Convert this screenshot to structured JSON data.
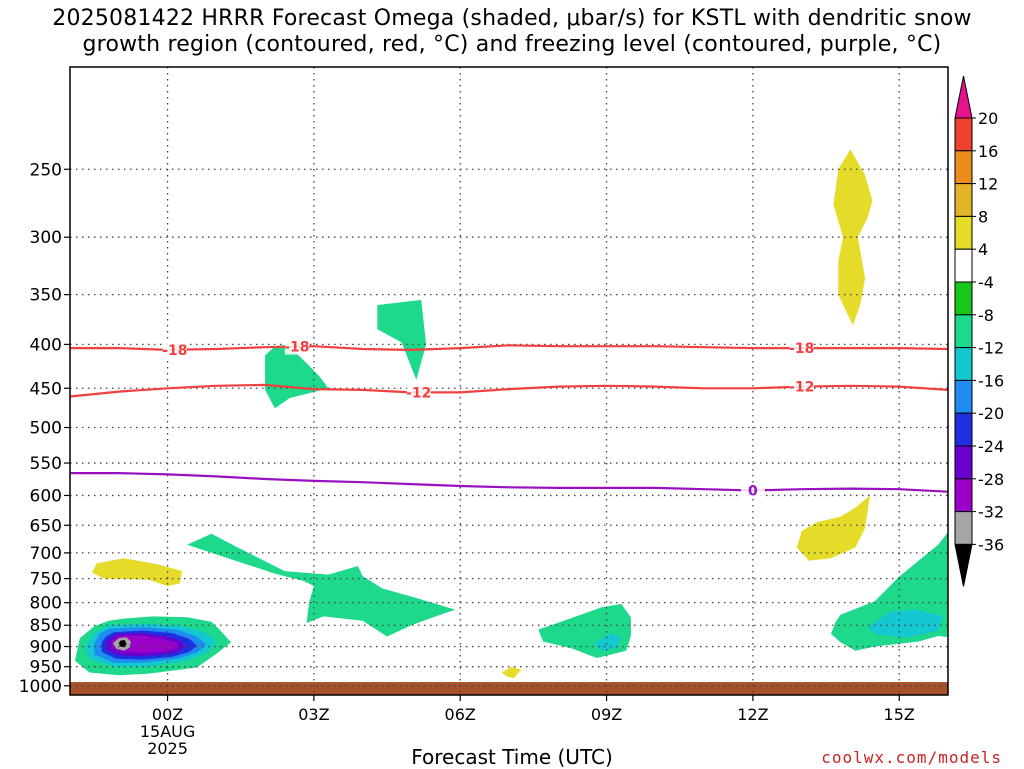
{
  "title": {
    "line1": "2025081422 HRRR Forecast Omega (shaded, μbar/s) for KSTL with dendritic snow",
    "line2": "growth region (contoured, red, °C) and freezing level (contoured, purple, °C)"
  },
  "xlabel": "Forecast Time (UTC)",
  "credit": "coolwx.com/models",
  "chart_data": {
    "type": "heatmap",
    "x_axis": {
      "unit": "forecast hour",
      "range": [
        -2,
        16
      ],
      "ticks": [
        {
          "x": 0,
          "lines": [
            "00Z",
            "15AUG",
            "2025"
          ]
        },
        {
          "x": 3,
          "lines": [
            "03Z"
          ]
        },
        {
          "x": 6,
          "lines": [
            "06Z"
          ]
        },
        {
          "x": 9,
          "lines": [
            "09Z"
          ]
        },
        {
          "x": 12,
          "lines": [
            "12Z"
          ]
        },
        {
          "x": 15,
          "lines": [
            "15Z"
          ]
        }
      ]
    },
    "y_axis": {
      "unit": "hPa",
      "scale": "log",
      "inverted": true,
      "range": [
        1025,
        190
      ],
      "ticks": [
        250,
        300,
        350,
        400,
        450,
        500,
        550,
        600,
        650,
        700,
        750,
        800,
        850,
        900,
        950,
        1000
      ],
      "grid": true
    },
    "colorbar": {
      "levels": [
        -36,
        -32,
        -28,
        -24,
        -20,
        -16,
        -12,
        -8,
        -4,
        4,
        8,
        12,
        16,
        20
      ],
      "labels": [
        "20",
        "16",
        "12",
        "8",
        "4",
        "-4",
        "-8",
        "-12",
        "-16",
        "-20",
        "-24",
        "-28",
        "-32",
        "-36"
      ],
      "colors": [
        "#000000",
        "#a6a6a6",
        "#9c00c8",
        "#6a00d0",
        "#2030e0",
        "#1e8cf0",
        "#14c8d2",
        "#1ed88c",
        "#18c818",
        "#ffffff",
        "#e4dc28",
        "#e4b428",
        "#ec8c1c",
        "#f04030",
        "#e6148c"
      ]
    },
    "omega_regions": [
      {
        "level": -8,
        "pts": [
          [
            2.55,
            405
          ],
          [
            2.5,
            400
          ],
          [
            2.2,
            402
          ],
          [
            2.0,
            412
          ],
          [
            2.0,
            452
          ],
          [
            2.2,
            475
          ],
          [
            2.5,
            462
          ],
          [
            3.3,
            450
          ],
          [
            3.1,
            435
          ],
          [
            2.8,
            418
          ]
        ]
      },
      {
        "level": -8,
        "pts": [
          [
            4.3,
            360
          ],
          [
            5.2,
            355
          ],
          [
            5.3,
            400
          ],
          [
            5.1,
            440
          ],
          [
            4.8,
            398
          ],
          [
            4.3,
            384
          ]
        ]
      },
      {
        "level": -8,
        "pts": [
          [
            0.9,
            665
          ],
          [
            0.4,
            685
          ],
          [
            1.3,
            712
          ],
          [
            2.2,
            740
          ],
          [
            2.8,
            755
          ],
          [
            3.0,
            765
          ],
          [
            2.9,
            800
          ],
          [
            2.85,
            845
          ],
          [
            3.2,
            830
          ],
          [
            4.0,
            840
          ],
          [
            4.5,
            876
          ],
          [
            5.0,
            850
          ],
          [
            5.5,
            830
          ],
          [
            5.9,
            815
          ],
          [
            5.1,
            790
          ],
          [
            4.4,
            770
          ],
          [
            4.0,
            745
          ],
          [
            3.9,
            725
          ],
          [
            3.3,
            742
          ],
          [
            2.4,
            735
          ],
          [
            1.4,
            688
          ]
        ]
      },
      {
        "level": -8,
        "pts": [
          [
            7.6,
            860
          ],
          [
            8.3,
            833
          ],
          [
            8.9,
            810
          ],
          [
            9.3,
            803
          ],
          [
            9.5,
            832
          ],
          [
            9.5,
            875
          ],
          [
            9.4,
            910
          ],
          [
            8.8,
            928
          ],
          [
            8.3,
            905
          ],
          [
            7.7,
            888
          ]
        ]
      },
      {
        "level": -12,
        "pts": [
          [
            8.75,
            893
          ],
          [
            9.1,
            868
          ],
          [
            9.3,
            878
          ],
          [
            9.2,
            902
          ],
          [
            8.9,
            912
          ]
        ]
      },
      {
        "level": -8,
        "pts": [
          [
            13.8,
            826
          ],
          [
            14.5,
            797
          ],
          [
            15.0,
            746
          ],
          [
            15.8,
            685
          ],
          [
            16.2,
            640
          ],
          [
            16.2,
            880
          ],
          [
            15.8,
            875
          ],
          [
            15.4,
            888
          ],
          [
            14.5,
            900
          ],
          [
            14.1,
            910
          ],
          [
            13.8,
            890
          ],
          [
            13.6,
            870
          ],
          [
            13.7,
            842
          ]
        ]
      },
      {
        "level": -12,
        "pts": [
          [
            14.35,
            855
          ],
          [
            14.8,
            820
          ],
          [
            15.35,
            815
          ],
          [
            15.9,
            830
          ],
          [
            15.8,
            862
          ],
          [
            15.2,
            878
          ],
          [
            14.55,
            872
          ]
        ]
      },
      {
        "level": -8,
        "pts": [
          [
            -0.9,
            835
          ],
          [
            -0.3,
            830
          ],
          [
            0.4,
            832
          ],
          [
            0.9,
            842
          ],
          [
            1.1,
            864
          ],
          [
            1.3,
            890
          ],
          [
            1.0,
            918
          ],
          [
            0.6,
            952
          ],
          [
            -0.4,
            968
          ],
          [
            -1.0,
            972
          ],
          [
            -1.6,
            965
          ],
          [
            -1.9,
            935
          ],
          [
            -1.8,
            880
          ],
          [
            -1.5,
            852
          ],
          [
            -1.2,
            840
          ]
        ]
      },
      {
        "level": -12,
        "pts": [
          [
            -1.2,
            850
          ],
          [
            -0.4,
            846
          ],
          [
            0.3,
            852
          ],
          [
            0.8,
            868
          ],
          [
            1.0,
            890
          ],
          [
            0.8,
            915
          ],
          [
            0.4,
            935
          ],
          [
            -0.4,
            950
          ],
          [
            -1.1,
            950
          ],
          [
            -1.6,
            930
          ],
          [
            -1.7,
            900
          ],
          [
            -1.5,
            868
          ]
        ]
      },
      {
        "level": -16,
        "pts": [
          [
            -1.2,
            858
          ],
          [
            -0.5,
            854
          ],
          [
            0.2,
            860
          ],
          [
            0.6,
            876
          ],
          [
            0.8,
            895
          ],
          [
            0.6,
            915
          ],
          [
            0.2,
            930
          ],
          [
            -0.5,
            940
          ],
          [
            -1.1,
            940
          ],
          [
            -1.5,
            920
          ],
          [
            -1.5,
            893
          ],
          [
            -1.4,
            870
          ]
        ]
      },
      {
        "level": -20,
        "pts": [
          [
            -1.1,
            866
          ],
          [
            -0.5,
            862
          ],
          [
            0.1,
            868
          ],
          [
            0.45,
            882
          ],
          [
            0.6,
            898
          ],
          [
            0.45,
            913
          ],
          [
            0.1,
            925
          ],
          [
            -0.5,
            932
          ],
          [
            -1.05,
            930
          ],
          [
            -1.35,
            913
          ],
          [
            -1.35,
            890
          ],
          [
            -1.25,
            875
          ]
        ]
      },
      {
        "level": -24,
        "pts": [
          [
            -1.05,
            870
          ],
          [
            -0.55,
            868
          ],
          [
            -0.05,
            875
          ],
          [
            0.3,
            888
          ],
          [
            0.35,
            902
          ],
          [
            0.2,
            914
          ],
          [
            -0.15,
            920
          ],
          [
            -0.6,
            924
          ],
          [
            -1.0,
            921
          ],
          [
            -1.25,
            908
          ],
          [
            -1.25,
            888
          ]
        ]
      },
      {
        "level": -28,
        "pts": [
          [
            -0.95,
            875
          ],
          [
            -0.5,
            874
          ],
          [
            -0.1,
            882
          ],
          [
            0.2,
            893
          ],
          [
            0.2,
            903
          ],
          [
            0.0,
            912
          ],
          [
            -0.45,
            915
          ],
          [
            -0.9,
            913
          ],
          [
            -1.15,
            902
          ],
          [
            -1.15,
            886
          ]
        ]
      },
      {
        "level": -32,
        "pts": [
          [
            -1.0,
            880
          ],
          [
            -0.85,
            878
          ],
          [
            -0.75,
            888
          ],
          [
            -0.78,
            903
          ],
          [
            -0.9,
            910
          ],
          [
            -1.05,
            905
          ],
          [
            -1.12,
            892
          ]
        ]
      },
      {
        "level": -36,
        "pts": [
          [
            -0.97,
            886
          ],
          [
            -0.88,
            884
          ],
          [
            -0.84,
            894
          ],
          [
            -0.88,
            902
          ],
          [
            -0.97,
            900
          ],
          [
            -1.0,
            892
          ]
        ]
      },
      {
        "level": 4,
        "pts": [
          [
            -1.45,
            720
          ],
          [
            -0.9,
            710
          ],
          [
            -0.2,
            722
          ],
          [
            0.3,
            735
          ],
          [
            0.25,
            760
          ],
          [
            0.0,
            765
          ],
          [
            -0.4,
            752
          ],
          [
            -1.3,
            750
          ],
          [
            -1.55,
            738
          ]
        ]
      },
      {
        "level": 4,
        "pts": [
          [
            6.85,
            965
          ],
          [
            7.05,
            950
          ],
          [
            7.25,
            958
          ],
          [
            7.1,
            980
          ],
          [
            6.95,
            975
          ]
        ]
      },
      {
        "level": 4,
        "pts": [
          [
            14.0,
            237
          ],
          [
            14.3,
            254
          ],
          [
            14.45,
            272
          ],
          [
            14.35,
            285
          ],
          [
            14.15,
            300
          ],
          [
            14.3,
            335
          ],
          [
            14.2,
            360
          ],
          [
            14.05,
            380
          ],
          [
            13.75,
            350
          ],
          [
            13.75,
            320
          ],
          [
            13.85,
            300
          ],
          [
            13.65,
            275
          ],
          [
            13.75,
            250
          ]
        ]
      },
      {
        "level": 4,
        "pts": [
          [
            13.0,
            660
          ],
          [
            13.3,
            645
          ],
          [
            13.8,
            635
          ],
          [
            14.1,
            620
          ],
          [
            14.4,
            600
          ],
          [
            14.3,
            655
          ],
          [
            14.1,
            690
          ],
          [
            13.6,
            710
          ],
          [
            13.15,
            715
          ],
          [
            12.9,
            690
          ]
        ]
      }
    ],
    "contours": [
      {
        "name": "-18",
        "color": "#f04040",
        "label_at": [
          0.15,
          2.65,
          13.0
        ],
        "points": [
          [
            -2,
            404
          ],
          [
            -1,
            404
          ],
          [
            0,
            406
          ],
          [
            1,
            405
          ],
          [
            2,
            403
          ],
          [
            3,
            402
          ],
          [
            4,
            405
          ],
          [
            5,
            406
          ],
          [
            6,
            404
          ],
          [
            7,
            401
          ],
          [
            8,
            402
          ],
          [
            9,
            402
          ],
          [
            10,
            402
          ],
          [
            11,
            403
          ],
          [
            12,
            404
          ],
          [
            13,
            404
          ],
          [
            14,
            404
          ],
          [
            15,
            404
          ],
          [
            16,
            405
          ]
        ]
      },
      {
        "name": "-12",
        "color": "#f04040",
        "label_at": [
          5.15,
          13.0
        ],
        "points": [
          [
            -2,
            460
          ],
          [
            -1,
            454
          ],
          [
            0,
            450
          ],
          [
            1,
            447
          ],
          [
            2,
            446
          ],
          [
            3,
            451
          ],
          [
            4,
            452
          ],
          [
            5,
            455
          ],
          [
            6,
            455
          ],
          [
            7,
            451
          ],
          [
            8,
            448
          ],
          [
            9,
            447
          ],
          [
            10,
            448
          ],
          [
            11,
            450
          ],
          [
            12,
            450
          ],
          [
            13,
            448
          ],
          [
            14,
            447
          ],
          [
            15,
            448
          ],
          [
            16,
            452
          ]
        ]
      },
      {
        "name": "0",
        "color": "#9910c0",
        "label_at": [
          12.0
        ],
        "points": [
          [
            -2,
            565
          ],
          [
            -1,
            565
          ],
          [
            0,
            567
          ],
          [
            1,
            570
          ],
          [
            2,
            574
          ],
          [
            3,
            577
          ],
          [
            4,
            579
          ],
          [
            5,
            582
          ],
          [
            6,
            585
          ],
          [
            7,
            587
          ],
          [
            8,
            588
          ],
          [
            9,
            588
          ],
          [
            10,
            588
          ],
          [
            11,
            590
          ],
          [
            12,
            592
          ],
          [
            13,
            590
          ],
          [
            14,
            589
          ],
          [
            15,
            590
          ],
          [
            16,
            594
          ]
        ]
      }
    ],
    "ground": {
      "top_hPa": 990,
      "color": "#a5522a"
    }
  }
}
